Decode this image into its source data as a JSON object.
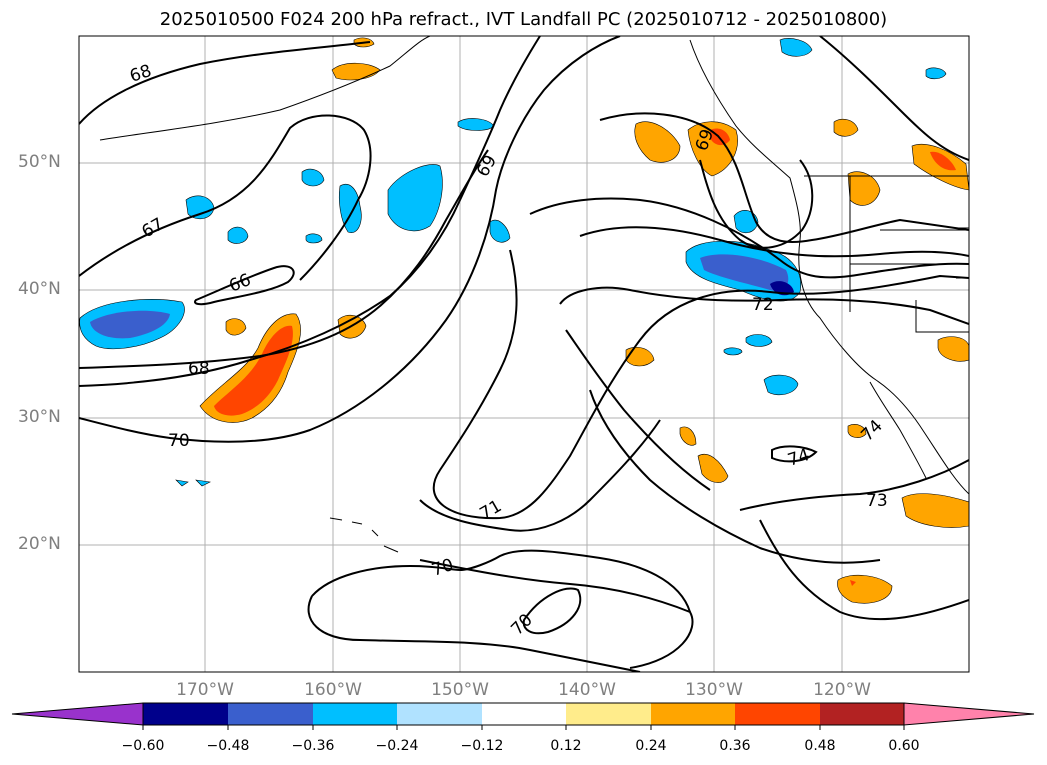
{
  "title": "2025010500 F024 200 hPa refract., IVT Landfall PC (2025010712 - 2025010800)",
  "lat_labels": [
    "50°N",
    "40°N",
    "30°N",
    "20°N"
  ],
  "lon_labels": [
    "170°W",
    "160°W",
    "150°W",
    "140°W",
    "130°W",
    "120°W"
  ],
  "contour_labels": [
    "68",
    "67",
    "66",
    "68",
    "70",
    "69",
    "69",
    "72",
    "71",
    "70",
    "70",
    "74",
    "73",
    "74"
  ],
  "colorbar": {
    "ticks": [
      "−0.60",
      "−0.48",
      "−0.36",
      "−0.24",
      "−0.12",
      "0.12",
      "0.24",
      "0.36",
      "0.48",
      "0.60"
    ],
    "colors": [
      "#9932cc",
      "#00008b",
      "#3a5fcd",
      "#00bfff",
      "#b0e2ff",
      "#ffffff",
      "#ffec8b",
      "#ffa500",
      "#ff4500",
      "#b22222",
      "#ff82ab"
    ]
  }
}
